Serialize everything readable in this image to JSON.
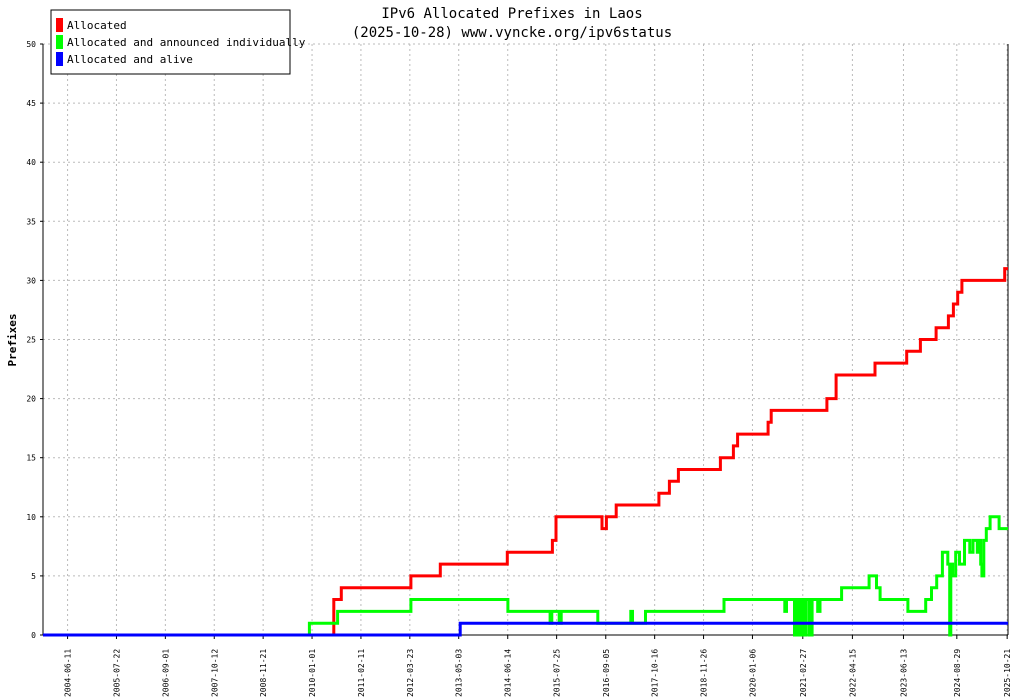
{
  "chart_data": {
    "type": "line",
    "title": "IPv6 Allocated Prefixes in Laos",
    "subtitle": "(2025-10-28) www.vyncke.org/ipv6status",
    "ylabel": "Prefixes",
    "xlabel": "",
    "ylim": [
      0,
      50
    ],
    "xlim": [
      "2003-11-20",
      "2025-10-28"
    ],
    "yticks": [
      0,
      5,
      10,
      15,
      20,
      25,
      30,
      35,
      40,
      45,
      50
    ],
    "xticks": [
      "2004-06-11",
      "2005-07-22",
      "2006-09-01",
      "2007-10-12",
      "2008-11-21",
      "2010-01-01",
      "2011-02-11",
      "2012-03-23",
      "2013-05-03",
      "2014-06-14",
      "2015-07-25",
      "2016-09-05",
      "2017-10-16",
      "2018-11-26",
      "2020-01-06",
      "2021-02-27",
      "2022-04-15",
      "2023-06-13",
      "2024-08-29",
      "2025-10-21"
    ],
    "grid": true,
    "legend_position": "top-left",
    "series": [
      {
        "name": "Allocated",
        "color": "#ff0000",
        "points": [
          [
            "2003-11-20",
            0
          ],
          [
            "2010-07-01",
            0
          ],
          [
            "2010-07-01",
            3
          ],
          [
            "2010-09-01",
            3
          ],
          [
            "2010-09-01",
            4
          ],
          [
            "2012-04-01",
            4
          ],
          [
            "2012-04-01",
            5
          ],
          [
            "2012-12-01",
            5
          ],
          [
            "2012-12-01",
            6
          ],
          [
            "2014-06-10",
            6
          ],
          [
            "2014-06-10",
            7
          ],
          [
            "2015-06-20",
            7
          ],
          [
            "2015-06-20",
            8
          ],
          [
            "2015-07-20",
            8
          ],
          [
            "2015-07-20",
            10
          ],
          [
            "2016-08-05",
            10
          ],
          [
            "2016-08-05",
            9
          ],
          [
            "2016-09-10",
            9
          ],
          [
            "2016-09-10",
            10
          ],
          [
            "2016-12-01",
            10
          ],
          [
            "2016-12-01",
            11
          ],
          [
            "2017-11-20",
            11
          ],
          [
            "2017-11-20",
            12
          ],
          [
            "2018-02-15",
            12
          ],
          [
            "2018-02-15",
            13
          ],
          [
            "2018-05-01",
            13
          ],
          [
            "2018-05-01",
            14
          ],
          [
            "2019-04-15",
            14
          ],
          [
            "2019-04-15",
            15
          ],
          [
            "2019-08-01",
            15
          ],
          [
            "2019-08-01",
            16
          ],
          [
            "2019-09-05",
            16
          ],
          [
            "2019-09-05",
            17
          ],
          [
            "2020-05-15",
            17
          ],
          [
            "2020-05-15",
            18
          ],
          [
            "2020-06-10",
            18
          ],
          [
            "2020-06-10",
            19
          ],
          [
            "2021-09-15",
            19
          ],
          [
            "2021-09-15",
            20
          ],
          [
            "2021-12-01",
            20
          ],
          [
            "2021-12-01",
            22
          ],
          [
            "2022-10-20",
            22
          ],
          [
            "2022-10-20",
            23
          ],
          [
            "2023-07-10",
            23
          ],
          [
            "2023-07-10",
            24
          ],
          [
            "2023-11-01",
            24
          ],
          [
            "2023-11-01",
            25
          ],
          [
            "2024-03-10",
            25
          ],
          [
            "2024-03-10",
            26
          ],
          [
            "2024-06-20",
            26
          ],
          [
            "2024-06-20",
            27
          ],
          [
            "2024-08-01",
            27
          ],
          [
            "2024-08-01",
            28
          ],
          [
            "2024-09-05",
            28
          ],
          [
            "2024-09-05",
            29
          ],
          [
            "2024-10-10",
            29
          ],
          [
            "2024-10-10",
            30
          ],
          [
            "2025-10-01",
            30
          ],
          [
            "2025-10-01",
            31
          ],
          [
            "2025-10-28",
            31
          ]
        ]
      },
      {
        "name": "Allocated and announced individually",
        "color": "#00ff00",
        "points": [
          [
            "2003-11-20",
            0
          ],
          [
            "2009-12-10",
            0
          ],
          [
            "2009-12-10",
            1
          ],
          [
            "2010-08-01",
            1
          ],
          [
            "2010-08-01",
            2
          ],
          [
            "2012-04-01",
            2
          ],
          [
            "2012-04-01",
            3
          ],
          [
            "2014-06-15",
            3
          ],
          [
            "2014-06-15",
            2
          ],
          [
            "2015-06-01",
            2
          ],
          [
            "2015-06-01",
            1
          ],
          [
            "2015-06-15",
            1
          ],
          [
            "2015-06-15",
            2
          ],
          [
            "2015-08-15",
            2
          ],
          [
            "2015-08-15",
            1
          ],
          [
            "2015-09-01",
            1
          ],
          [
            "2015-09-01",
            2
          ],
          [
            "2016-07-01",
            2
          ],
          [
            "2016-07-01",
            1
          ],
          [
            "2017-04-01",
            1
          ],
          [
            "2017-04-01",
            2
          ],
          [
            "2017-04-15",
            2
          ],
          [
            "2017-04-15",
            1
          ],
          [
            "2017-08-01",
            1
          ],
          [
            "2017-08-01",
            2
          ],
          [
            "2019-05-15",
            2
          ],
          [
            "2019-05-15",
            3
          ],
          [
            "2020-10-01",
            3
          ],
          [
            "2020-10-01",
            2
          ],
          [
            "2020-10-15",
            2
          ],
          [
            "2020-10-15",
            3
          ],
          [
            "2020-12-20",
            3
          ],
          [
            "2020-12-20",
            0
          ],
          [
            "2021-01-05",
            0
          ],
          [
            "2021-01-05",
            3
          ],
          [
            "2021-01-25",
            3
          ],
          [
            "2021-01-25",
            0
          ],
          [
            "2021-02-15",
            0
          ],
          [
            "2021-02-15",
            3
          ],
          [
            "2021-03-01",
            3
          ],
          [
            "2021-03-01",
            0
          ],
          [
            "2021-03-25",
            0
          ],
          [
            "2021-03-25",
            3
          ],
          [
            "2021-04-20",
            3
          ],
          [
            "2021-04-20",
            0
          ],
          [
            "2021-05-15",
            0
          ],
          [
            "2021-05-15",
            3
          ],
          [
            "2021-07-01",
            3
          ],
          [
            "2021-07-01",
            2
          ],
          [
            "2021-07-20",
            2
          ],
          [
            "2021-07-20",
            3
          ],
          [
            "2022-01-15",
            3
          ],
          [
            "2022-01-15",
            4
          ],
          [
            "2022-09-01",
            4
          ],
          [
            "2022-09-01",
            5
          ],
          [
            "2022-11-01",
            5
          ],
          [
            "2022-11-01",
            4
          ],
          [
            "2022-12-01",
            4
          ],
          [
            "2022-12-01",
            3
          ],
          [
            "2023-07-20",
            3
          ],
          [
            "2023-07-20",
            2
          ],
          [
            "2023-12-15",
            2
          ],
          [
            "2023-12-15",
            3
          ],
          [
            "2024-02-01",
            3
          ],
          [
            "2024-02-01",
            4
          ],
          [
            "2024-03-15",
            4
          ],
          [
            "2024-03-15",
            5
          ],
          [
            "2024-05-01",
            5
          ],
          [
            "2024-05-01",
            7
          ],
          [
            "2024-06-15",
            7
          ],
          [
            "2024-06-15",
            6
          ],
          [
            "2024-07-01",
            6
          ],
          [
            "2024-07-01",
            0
          ],
          [
            "2024-07-10",
            0
          ],
          [
            "2024-07-10",
            6
          ],
          [
            "2024-07-25",
            6
          ],
          [
            "2024-07-25",
            5
          ],
          [
            "2024-08-20",
            5
          ],
          [
            "2024-08-20",
            7
          ],
          [
            "2024-09-20",
            7
          ],
          [
            "2024-09-20",
            6
          ],
          [
            "2024-11-01",
            6
          ],
          [
            "2024-11-01",
            8
          ],
          [
            "2024-12-15",
            8
          ],
          [
            "2024-12-15",
            7
          ],
          [
            "2025-01-10",
            7
          ],
          [
            "2025-01-10",
            8
          ],
          [
            "2025-02-15",
            8
          ],
          [
            "2025-02-15",
            7
          ],
          [
            "2025-03-01",
            7
          ],
          [
            "2025-03-01",
            8
          ],
          [
            "2025-03-15",
            8
          ],
          [
            "2025-03-15",
            6
          ],
          [
            "2025-03-25",
            6
          ],
          [
            "2025-03-25",
            5
          ],
          [
            "2025-04-10",
            5
          ],
          [
            "2025-04-10",
            8
          ],
          [
            "2025-05-01",
            8
          ],
          [
            "2025-05-01",
            9
          ],
          [
            "2025-06-01",
            9
          ],
          [
            "2025-06-01",
            10
          ],
          [
            "2025-08-15",
            10
          ],
          [
            "2025-08-15",
            9
          ],
          [
            "2025-10-28",
            9
          ]
        ]
      },
      {
        "name": "Allocated and alive",
        "color": "#0000ff",
        "points": [
          [
            "2003-11-20",
            0
          ],
          [
            "2013-05-15",
            0
          ],
          [
            "2013-05-15",
            1
          ],
          [
            "2025-10-28",
            1
          ]
        ]
      }
    ]
  }
}
